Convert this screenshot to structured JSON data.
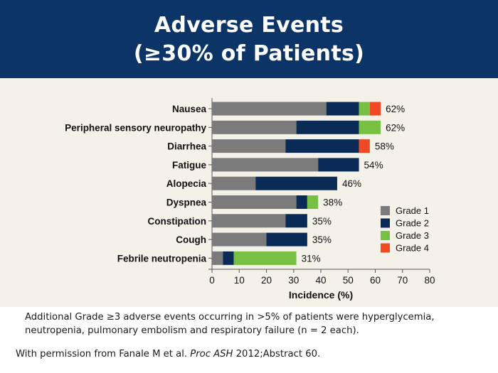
{
  "slide": {
    "title_line1": "Adverse Events",
    "title_line2": "(≥30% of Patients)",
    "note": "Additional Grade ≥3 adverse events occurring in >5% of patients were hyperglycemia, neutropenia, pulmonary embolism and respiratory failure (n = 2 each).",
    "source_prefix": "With permission from Fanale M et al. ",
    "source_journal": "Proc ASH",
    "source_suffix": " 2012;Abstract 60."
  },
  "colors": {
    "header_bg": "#0c3466",
    "chart_bg": "#f3f1e8",
    "grade1": "#7b7b7b",
    "grade2": "#0b2b57",
    "grade3": "#77c043",
    "grade4": "#ef4a23"
  },
  "chart_data": {
    "type": "bar",
    "orientation": "horizontal",
    "stacked": true,
    "categories": [
      "Nausea",
      "Peripheral sensory neuropathy",
      "Diarrhea",
      "Fatigue",
      "Alopecia",
      "Dyspnea",
      "Constipation",
      "Cough",
      "Febrile neutropenia"
    ],
    "series": [
      {
        "name": "Grade 1",
        "values": [
          42,
          31,
          27,
          39,
          16,
          31,
          27,
          20,
          4
        ]
      },
      {
        "name": "Grade 2",
        "values": [
          12,
          23,
          27,
          15,
          30,
          4,
          8,
          15,
          4
        ]
      },
      {
        "name": "Grade 3",
        "values": [
          4,
          8,
          0,
          0,
          0,
          4,
          0,
          0,
          23
        ]
      },
      {
        "name": "Grade 4",
        "values": [
          4,
          0,
          4,
          0,
          0,
          0,
          0,
          0,
          0
        ]
      }
    ],
    "totals": [
      "62%",
      "62%",
      "58%",
      "54%",
      "46%",
      "38%",
      "35%",
      "35%",
      "31%"
    ],
    "xlabel": "Incidence (%)",
    "ylabel": "",
    "xlim": [
      0,
      80
    ],
    "xticks": [
      0,
      10,
      20,
      30,
      40,
      50,
      60,
      70,
      80
    ],
    "grid": false,
    "legend_position": "right"
  }
}
